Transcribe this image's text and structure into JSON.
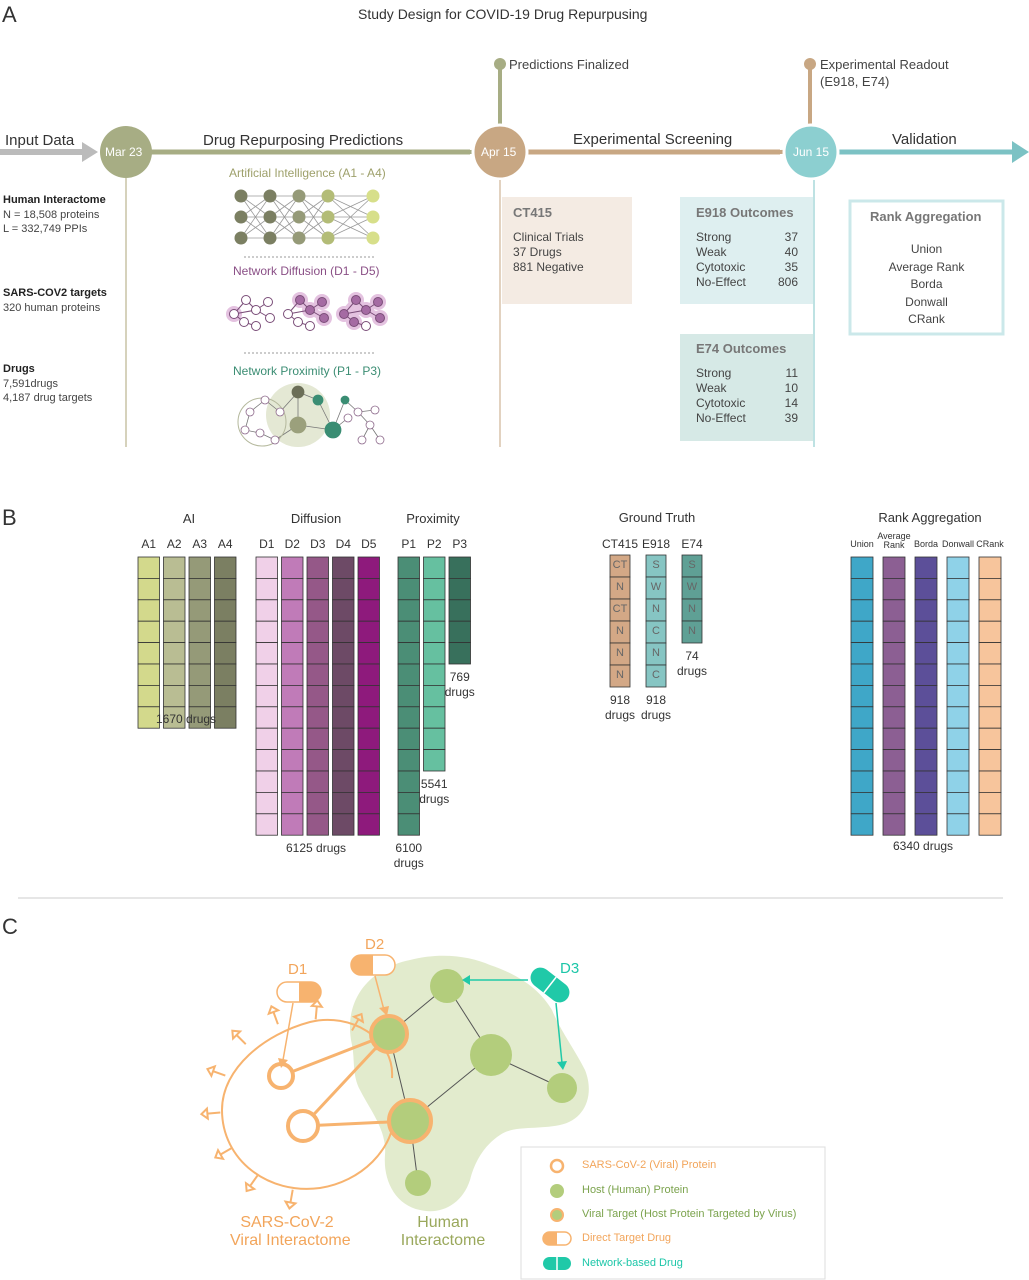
{
  "panels": {
    "a": "A",
    "b": "B",
    "c": "C"
  },
  "title": "Study Design for COVID-19 Drug Repurpusing",
  "timeline": {
    "input_data": "Input Data",
    "drug_repurposing": "Drug Repurposing Predictions",
    "experimental_screening": "Experimental Screening",
    "validation": "Validation",
    "predictions_finalized": "Predictions Finalized",
    "experimental_readout_1": "Experimental Readout",
    "experimental_readout_2": "(E918, E74)",
    "dates": [
      "Mar 23",
      "Apr 15",
      "Jun 15"
    ]
  },
  "inputs": {
    "interactome_title": "Human Interactome",
    "interactome_n": "N = 18,508 proteins",
    "interactome_l": "L = 332,749 PPIs",
    "targets_title": "SARS-COV2 targets",
    "targets_text": "320 human proteins",
    "drugs_title": "Drugs",
    "drugs_1": "7,591drugs",
    "drugs_2": "4,187 drug targets"
  },
  "methods": {
    "ai": "Artificial Intelligence (A1 - A4)",
    "diffusion": "Network Diffusion (D1 - D5)",
    "proximity": "Network Proximity (P1 - P3)"
  },
  "ct415": {
    "title": "CT415",
    "lines": [
      "Clinical Trials",
      "37 Drugs",
      "881 Negative"
    ]
  },
  "e918": {
    "title": "E918 Outcomes",
    "rows": [
      {
        "label": "Strong",
        "value": "37"
      },
      {
        "label": "Weak",
        "value": "40"
      },
      {
        "label": "Cytotoxic",
        "value": "35"
      },
      {
        "label": "No-Effect",
        "value": "806"
      }
    ]
  },
  "e74": {
    "title": "E74 Outcomes",
    "rows": [
      {
        "label": "Strong",
        "value": "11"
      },
      {
        "label": "Weak",
        "value": "10"
      },
      {
        "label": "Cytotoxic",
        "value": "14"
      },
      {
        "label": "No-Effect",
        "value": "39"
      }
    ]
  },
  "rank_box": {
    "title": "Rank Aggregation",
    "items": [
      "Union",
      "Average Rank",
      "Borda",
      "Donwall",
      "CRank"
    ]
  },
  "panel_b": {
    "groups": {
      "ai": {
        "title": "AI",
        "footer": [
          "1670 drugs"
        ],
        "columns": [
          {
            "name": "A1",
            "color": "#d3d98c",
            "cells": 8
          },
          {
            "name": "A2",
            "color": "#b9bd93",
            "cells": 8
          },
          {
            "name": "A3",
            "color": "#959a78",
            "cells": 8
          },
          {
            "name": "A4",
            "color": "#7b7f62",
            "cells": 8
          }
        ]
      },
      "diffusion": {
        "title": "Diffusion",
        "footer": [
          "6125 drugs"
        ],
        "columns": [
          {
            "name": "D1",
            "color": "#f0d0e8",
            "cells": 13
          },
          {
            "name": "D2",
            "color": "#c07bb8",
            "cells": 13
          },
          {
            "name": "D3",
            "color": "#955888",
            "cells": 13
          },
          {
            "name": "D4",
            "color": "#6d4a66",
            "cells": 13
          },
          {
            "name": "D5",
            "color": "#8e1a7c",
            "cells": 13
          }
        ]
      },
      "proximity": {
        "title": "Proximity",
        "columns": [
          {
            "name": "P1",
            "color": "#4b8e76",
            "cells": 13,
            "footer": [
              "6100",
              "drugs"
            ]
          },
          {
            "name": "P2",
            "color": "#66c0a0",
            "cells": 10,
            "footer": [
              "5541",
              "drugs"
            ]
          },
          {
            "name": "P3",
            "color": "#38705c",
            "cells": 5,
            "footer": [
              "769",
              "drugs"
            ]
          }
        ]
      },
      "ground_truth": {
        "title": "Ground Truth",
        "columns": [
          {
            "name": "CT415",
            "color": "#d3a886",
            "cells": [
              "CT",
              "N",
              "CT",
              "N",
              "N",
              "N"
            ],
            "footer": [
              "918",
              "drugs"
            ]
          },
          {
            "name": "E918",
            "color": "#86c5c3",
            "cells": [
              "S",
              "W",
              "N",
              "C",
              "N",
              "C"
            ],
            "footer": [
              "918",
              "drugs"
            ]
          },
          {
            "name": "E74",
            "color": "#5fa095",
            "cells": [
              "S",
              "W",
              "N",
              "N"
            ],
            "footer": [
              "74",
              "drugs"
            ]
          }
        ]
      },
      "rank": {
        "title": "Rank Aggregation",
        "footer": [
          "6340 drugs"
        ],
        "columns": [
          {
            "name": "Union",
            "color": "#3fa7c8",
            "cells": 13
          },
          {
            "name": "Average Rank",
            "color": "#8c5f93",
            "cells": 13
          },
          {
            "name": "Borda",
            "color": "#5c4f99",
            "cells": 13
          },
          {
            "name": "Donwall",
            "color": "#8fd2e8",
            "cells": 13
          },
          {
            "name": "CRank",
            "color": "#f7c59c",
            "cells": 13
          }
        ]
      }
    }
  },
  "panel_c": {
    "drug_labels": [
      "D1",
      "D2",
      "D3"
    ],
    "viral_label": [
      "SARS-CoV-2",
      "Viral Interactome"
    ],
    "human_label": [
      "Human",
      "Interactome"
    ],
    "legend": [
      {
        "icon": "viral-protein",
        "text": "SARS-CoV-2 (Viral) Protein",
        "color": "#f2a55b"
      },
      {
        "icon": "host-protein",
        "text": "Host (Human) Protein",
        "color": "#7ba34d"
      },
      {
        "icon": "viral-target",
        "text": "Viral Target (Host Protein Targeted by Virus)",
        "color": "#7ba34d"
      },
      {
        "icon": "direct-drug",
        "text": "Direct Target Drug",
        "color": "#f2a55b"
      },
      {
        "icon": "network-drug",
        "text": "Network-based Drug",
        "color": "#1cc6a8"
      }
    ]
  },
  "colors": {
    "olive": "#a7ad84",
    "tan": "#c8a783",
    "teal": "#6fc0c3",
    "orange": "#f7b36f",
    "green_node": "#b3cd7c",
    "green_blob": "#e2ebcd",
    "network_drug": "#20c9a8"
  }
}
